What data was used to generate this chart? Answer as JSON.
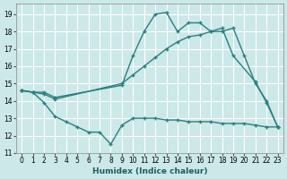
{
  "xlabel": "Humidex (Indice chaleur)",
  "xlim": [
    -0.5,
    23.5
  ],
  "ylim": [
    11,
    19.6
  ],
  "yticks": [
    11,
    12,
    13,
    14,
    15,
    16,
    17,
    18,
    19
  ],
  "xticks": [
    0,
    1,
    2,
    3,
    4,
    5,
    6,
    7,
    8,
    9,
    10,
    11,
    12,
    13,
    14,
    15,
    16,
    17,
    18,
    19,
    20,
    21,
    22,
    23
  ],
  "bg_color": "#cce8e8",
  "grid_color": "#ffffff",
  "line_color": "#2a7f7f",
  "line1_x": [
    0,
    1,
    2,
    3,
    9,
    10,
    11,
    12,
    13,
    14,
    15,
    16,
    17,
    18,
    19,
    21,
    22,
    23
  ],
  "line1_y": [
    14.6,
    14.5,
    14.5,
    14.2,
    14.9,
    16.6,
    18.0,
    19.0,
    19.1,
    18.0,
    18.5,
    18.5,
    18.0,
    18.2,
    16.6,
    15.1,
    13.9,
    12.5
  ],
  "line2_x": [
    0,
    1,
    2,
    3,
    9,
    10,
    11,
    12,
    13,
    14,
    15,
    16,
    17,
    18,
    19,
    20,
    21,
    22,
    23
  ],
  "line2_y": [
    14.6,
    14.5,
    14.4,
    14.1,
    15.0,
    15.5,
    16.0,
    16.5,
    17.0,
    17.4,
    17.7,
    17.8,
    18.0,
    18.0,
    18.2,
    16.6,
    15.0,
    14.0,
    12.5
  ],
  "line3_x": [
    0,
    1,
    2,
    3,
    4,
    5,
    6,
    7,
    8,
    9,
    10,
    11,
    12,
    13,
    14,
    15,
    16,
    17,
    18,
    19,
    20,
    21,
    22,
    23
  ],
  "line3_y": [
    14.6,
    14.5,
    13.9,
    13.1,
    12.8,
    12.5,
    12.2,
    12.2,
    11.5,
    12.6,
    13.0,
    13.0,
    13.0,
    12.9,
    12.9,
    12.8,
    12.8,
    12.8,
    12.7,
    12.7,
    12.7,
    12.6,
    12.5,
    12.5
  ]
}
